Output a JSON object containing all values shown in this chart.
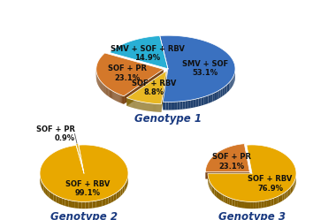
{
  "genotype1": {
    "labels": [
      "SMV + SOF + RBV",
      "SOF + PR",
      "SOF + RBV",
      "SMV + SOF"
    ],
    "values": [
      14.9,
      23.1,
      8.8,
      53.1
    ],
    "colors": [
      "#29afd4",
      "#d4782a",
      "#e8b824",
      "#3a71c0"
    ],
    "explode": [
      0.0,
      0.07,
      0.07,
      0.0
    ],
    "startangle": 97,
    "title": "Genotype 1"
  },
  "genotype2": {
    "labels": [
      "SOF + PR",
      "SOF + RBV"
    ],
    "values": [
      0.9,
      99.1
    ],
    "colors": [
      "#e8b824",
      "#e8a800"
    ],
    "explode": [
      0.05,
      0.0
    ],
    "startangle": 97,
    "title": "Genotype 2"
  },
  "genotype3": {
    "labels": [
      "SOF + PR",
      "SOF + RBV"
    ],
    "values": [
      23.1,
      76.9
    ],
    "colors": [
      "#d4782a",
      "#e8a800"
    ],
    "explode": [
      0.07,
      0.0
    ],
    "startangle": 97,
    "title": "Genotype 3"
  },
  "background_color": "#ffffff",
  "label_fontsize": 6.0,
  "title_fontsize": 8.5,
  "title_color": "#1a3a80"
}
